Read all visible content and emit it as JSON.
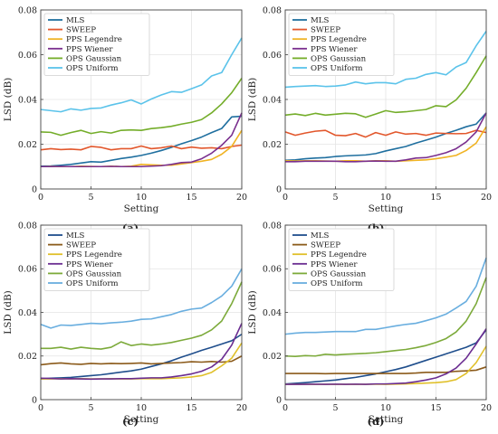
{
  "chart_data": [
    {
      "type": "line",
      "panel_label": "(a)",
      "xlabel": "Setting",
      "ylabel": "LSD (dB)",
      "xlim": [
        0,
        20
      ],
      "ylim": [
        0,
        0.08
      ],
      "xticks": [
        "0",
        "5",
        "10",
        "15",
        "20"
      ],
      "yticks": [
        "0",
        "0.02",
        "0.04",
        "0.06",
        "0.08"
      ],
      "legend_position": "top-left",
      "x": [
        0,
        1,
        2,
        3,
        4,
        5,
        6,
        7,
        8,
        9,
        10,
        11,
        12,
        13,
        14,
        15,
        16,
        17,
        18,
        19,
        20
      ],
      "series": [
        {
          "name": "MLS",
          "color": "#1f6f9f",
          "values": [
            0.0102,
            0.0103,
            0.0106,
            0.011,
            0.0116,
            0.0122,
            0.012,
            0.0128,
            0.0136,
            0.0142,
            0.015,
            0.016,
            0.0172,
            0.0186,
            0.0202,
            0.0216,
            0.0232,
            0.0252,
            0.027,
            0.0322,
            0.0325
          ]
        },
        {
          "name": "SWEEP",
          "color": "#e2572c",
          "values": [
            0.0175,
            0.018,
            0.0176,
            0.0178,
            0.0175,
            0.019,
            0.0186,
            0.0175,
            0.018,
            0.018,
            0.0192,
            0.018,
            0.0184,
            0.0192,
            0.018,
            0.0187,
            0.0182,
            0.0184,
            0.018,
            0.019,
            0.0196
          ]
        },
        {
          "name": "PPS Legendre",
          "color": "#f0b323",
          "values": [
            0.01,
            0.0101,
            0.01,
            0.01,
            0.0102,
            0.0101,
            0.01,
            0.0102,
            0.01,
            0.0102,
            0.011,
            0.0108,
            0.0106,
            0.0106,
            0.0112,
            0.0118,
            0.0124,
            0.0132,
            0.0155,
            0.019,
            0.0262
          ]
        },
        {
          "name": "PPS Wiener",
          "color": "#7a2f8e",
          "values": [
            0.01,
            0.01,
            0.0101,
            0.01,
            0.01,
            0.01,
            0.01,
            0.0101,
            0.01,
            0.01,
            0.01,
            0.0102,
            0.0104,
            0.011,
            0.0118,
            0.012,
            0.0135,
            0.016,
            0.0195,
            0.024,
            0.034
          ]
        },
        {
          "name": "OPS Gaussian",
          "color": "#74ad2a",
          "values": [
            0.0255,
            0.0253,
            0.024,
            0.0252,
            0.0262,
            0.0248,
            0.0256,
            0.025,
            0.0262,
            0.0264,
            0.0262,
            0.027,
            0.0274,
            0.028,
            0.029,
            0.0298,
            0.031,
            0.034,
            0.038,
            0.043,
            0.0495
          ]
        },
        {
          "name": "OPS Uniform",
          "color": "#5bc3ea",
          "values": [
            0.0355,
            0.035,
            0.0345,
            0.0358,
            0.0352,
            0.036,
            0.0362,
            0.0375,
            0.0385,
            0.0398,
            0.038,
            0.0402,
            0.042,
            0.0435,
            0.0432,
            0.0448,
            0.0465,
            0.0505,
            0.052,
            0.06,
            0.0675
          ]
        }
      ]
    },
    {
      "type": "line",
      "panel_label": "(b)",
      "xlabel": "Setting",
      "ylabel": "LSD (dB)",
      "xlim": [
        0,
        20
      ],
      "ylim": [
        0,
        0.08
      ],
      "xticks": [
        "0",
        "5",
        "10",
        "15",
        "20"
      ],
      "yticks": [
        "0",
        "0.02",
        "0.04",
        "0.06",
        "0.08"
      ],
      "legend_position": "top-left",
      "x": [
        0,
        1,
        2,
        3,
        4,
        5,
        6,
        7,
        8,
        9,
        10,
        11,
        12,
        13,
        14,
        15,
        16,
        17,
        18,
        19,
        20
      ],
      "series": [
        {
          "name": "MLS",
          "color": "#1f6f9f",
          "values": [
            0.0128,
            0.013,
            0.0135,
            0.0138,
            0.014,
            0.0145,
            0.0148,
            0.015,
            0.0152,
            0.0158,
            0.017,
            0.018,
            0.019,
            0.0205,
            0.0218,
            0.0232,
            0.0248,
            0.0262,
            0.0278,
            0.029,
            0.034
          ]
        },
        {
          "name": "SWEEP",
          "color": "#e2572c",
          "values": [
            0.0255,
            0.024,
            0.025,
            0.0258,
            0.0262,
            0.024,
            0.0238,
            0.0248,
            0.0232,
            0.0252,
            0.024,
            0.0255,
            0.0245,
            0.0248,
            0.024,
            0.025,
            0.0248,
            0.0247,
            0.0248,
            0.0262,
            0.0252
          ]
        },
        {
          "name": "PPS Legendre",
          "color": "#f0b323",
          "values": [
            0.0126,
            0.0125,
            0.0126,
            0.0126,
            0.0125,
            0.0124,
            0.0126,
            0.0126,
            0.0124,
            0.0126,
            0.0126,
            0.0124,
            0.0126,
            0.0128,
            0.013,
            0.0135,
            0.0142,
            0.015,
            0.0172,
            0.0205,
            0.0278
          ]
        },
        {
          "name": "PPS Wiener",
          "color": "#7a2f8e",
          "values": [
            0.0122,
            0.0122,
            0.0124,
            0.0124,
            0.0124,
            0.0124,
            0.0122,
            0.0122,
            0.0124,
            0.0125,
            0.0124,
            0.0124,
            0.013,
            0.0138,
            0.014,
            0.015,
            0.0162,
            0.018,
            0.021,
            0.0255,
            0.034
          ]
        },
        {
          "name": "OPS Gaussian",
          "color": "#74ad2a",
          "values": [
            0.033,
            0.0335,
            0.0328,
            0.0338,
            0.033,
            0.0334,
            0.0338,
            0.0336,
            0.032,
            0.0335,
            0.035,
            0.0342,
            0.0345,
            0.035,
            0.0355,
            0.0372,
            0.0368,
            0.0398,
            0.045,
            0.052,
            0.0595
          ]
        },
        {
          "name": "OPS Uniform",
          "color": "#5bc3ea",
          "values": [
            0.0455,
            0.0458,
            0.046,
            0.0462,
            0.0458,
            0.046,
            0.0465,
            0.0478,
            0.047,
            0.0475,
            0.0475,
            0.047,
            0.049,
            0.0495,
            0.0512,
            0.052,
            0.051,
            0.0545,
            0.0565,
            0.064,
            0.0705
          ]
        }
      ]
    },
    {
      "type": "line",
      "panel_label": "(c)",
      "xlabel": "Setting",
      "ylabel": "LSD (dB)",
      "xlim": [
        0,
        20
      ],
      "ylim": [
        0,
        0.08
      ],
      "xticks": [
        "0",
        "5",
        "10",
        "15",
        "20"
      ],
      "yticks": [
        "0",
        "0.02",
        "0.04",
        "0.06",
        "0.08"
      ],
      "legend_position": "top-left",
      "x": [
        0,
        1,
        2,
        3,
        4,
        5,
        6,
        7,
        8,
        9,
        10,
        11,
        12,
        13,
        14,
        15,
        16,
        17,
        18,
        19,
        20
      ],
      "series": [
        {
          "name": "MLS",
          "color": "#1f4e8c",
          "values": [
            0.0095,
            0.0098,
            0.01,
            0.0102,
            0.0106,
            0.011,
            0.0114,
            0.012,
            0.0126,
            0.0132,
            0.014,
            0.0152,
            0.0164,
            0.0178,
            0.0195,
            0.021,
            0.0226,
            0.024,
            0.0255,
            0.027,
            0.03
          ]
        },
        {
          "name": "SWEEP",
          "color": "#8b5a1a",
          "values": [
            0.016,
            0.0165,
            0.0168,
            0.0164,
            0.0162,
            0.0166,
            0.0164,
            0.0166,
            0.0165,
            0.0166,
            0.0168,
            0.0164,
            0.0166,
            0.0168,
            0.017,
            0.0174,
            0.0172,
            0.0175,
            0.0172,
            0.0176,
            0.02
          ]
        },
        {
          "name": "PPS Legendre",
          "color": "#e0c02a",
          "values": [
            0.0095,
            0.0095,
            0.0096,
            0.0095,
            0.0096,
            0.0095,
            0.0095,
            0.0096,
            0.0095,
            0.0095,
            0.0096,
            0.0096,
            0.0096,
            0.0098,
            0.01,
            0.0104,
            0.011,
            0.0125,
            0.0155,
            0.019,
            0.026
          ]
        },
        {
          "name": "PPS Wiener",
          "color": "#6a2c91",
          "values": [
            0.0098,
            0.0097,
            0.0095,
            0.0096,
            0.0095,
            0.0094,
            0.0095,
            0.0095,
            0.0096,
            0.0096,
            0.0098,
            0.01,
            0.01,
            0.0104,
            0.011,
            0.0118,
            0.013,
            0.015,
            0.0185,
            0.025,
            0.035
          ]
        },
        {
          "name": "OPS Gaussian",
          "color": "#7caa3a",
          "values": [
            0.0235,
            0.0235,
            0.024,
            0.0232,
            0.024,
            0.0235,
            0.0232,
            0.024,
            0.0265,
            0.0248,
            0.0255,
            0.025,
            0.0255,
            0.0262,
            0.0272,
            0.0282,
            0.0295,
            0.032,
            0.036,
            0.044,
            0.054
          ]
        },
        {
          "name": "OPS Uniform",
          "color": "#69aedf",
          "values": [
            0.0345,
            0.0328,
            0.0342,
            0.034,
            0.0345,
            0.035,
            0.0348,
            0.0352,
            0.0355,
            0.036,
            0.0368,
            0.037,
            0.038,
            0.039,
            0.0405,
            0.0415,
            0.042,
            0.0445,
            0.0475,
            0.052,
            0.06
          ]
        }
      ]
    },
    {
      "type": "line",
      "panel_label": "(d)",
      "xlabel": "Setting",
      "ylabel": "LSD (dB)",
      "xlim": [
        0,
        20
      ],
      "ylim": [
        0,
        0.08
      ],
      "xticks": [
        "0",
        "5",
        "10",
        "15",
        "20"
      ],
      "yticks": [
        "0",
        "0.02",
        "0.04",
        "0.06",
        "0.08"
      ],
      "legend_position": "top-left",
      "x": [
        0,
        1,
        2,
        3,
        4,
        5,
        6,
        7,
        8,
        9,
        10,
        11,
        12,
        13,
        14,
        15,
        16,
        17,
        18,
        19,
        20
      ],
      "series": [
        {
          "name": "MLS",
          "color": "#1f4e8c",
          "values": [
            0.0072,
            0.0075,
            0.0078,
            0.0082,
            0.0086,
            0.009,
            0.0096,
            0.0102,
            0.011,
            0.0118,
            0.0128,
            0.0138,
            0.015,
            0.0165,
            0.018,
            0.0195,
            0.021,
            0.0225,
            0.024,
            0.026,
            0.032
          ]
        },
        {
          "name": "SWEEP",
          "color": "#8b5a1a",
          "values": [
            0.012,
            0.012,
            0.012,
            0.012,
            0.0119,
            0.012,
            0.012,
            0.012,
            0.012,
            0.012,
            0.012,
            0.012,
            0.012,
            0.0122,
            0.0125,
            0.0125,
            0.0125,
            0.013,
            0.0132,
            0.0135,
            0.015
          ]
        },
        {
          "name": "PPS Legendre",
          "color": "#e0c02a",
          "values": [
            0.007,
            0.007,
            0.007,
            0.007,
            0.007,
            0.007,
            0.007,
            0.007,
            0.007,
            0.0071,
            0.007,
            0.0071,
            0.0072,
            0.0074,
            0.0076,
            0.0078,
            0.0082,
            0.0092,
            0.012,
            0.017,
            0.0245
          ]
        },
        {
          "name": "PPS Wiener",
          "color": "#6a2c91",
          "values": [
            0.007,
            0.007,
            0.007,
            0.0071,
            0.007,
            0.0071,
            0.007,
            0.0071,
            0.007,
            0.0072,
            0.0072,
            0.0074,
            0.0076,
            0.0082,
            0.009,
            0.01,
            0.0118,
            0.0145,
            0.019,
            0.0255,
            0.0325
          ]
        },
        {
          "name": "OPS Gaussian",
          "color": "#7caa3a",
          "values": [
            0.02,
            0.0198,
            0.0202,
            0.02,
            0.0208,
            0.0205,
            0.0208,
            0.021,
            0.0212,
            0.0215,
            0.022,
            0.0225,
            0.023,
            0.0238,
            0.0248,
            0.0262,
            0.028,
            0.031,
            0.036,
            0.044,
            0.056
          ]
        },
        {
          "name": "OPS Uniform",
          "color": "#69aedf",
          "values": [
            0.03,
            0.0305,
            0.0308,
            0.0308,
            0.031,
            0.0312,
            0.0312,
            0.0312,
            0.0322,
            0.0322,
            0.033,
            0.0338,
            0.0345,
            0.035,
            0.0362,
            0.0375,
            0.0392,
            0.042,
            0.045,
            0.052,
            0.065
          ]
        }
      ]
    }
  ]
}
